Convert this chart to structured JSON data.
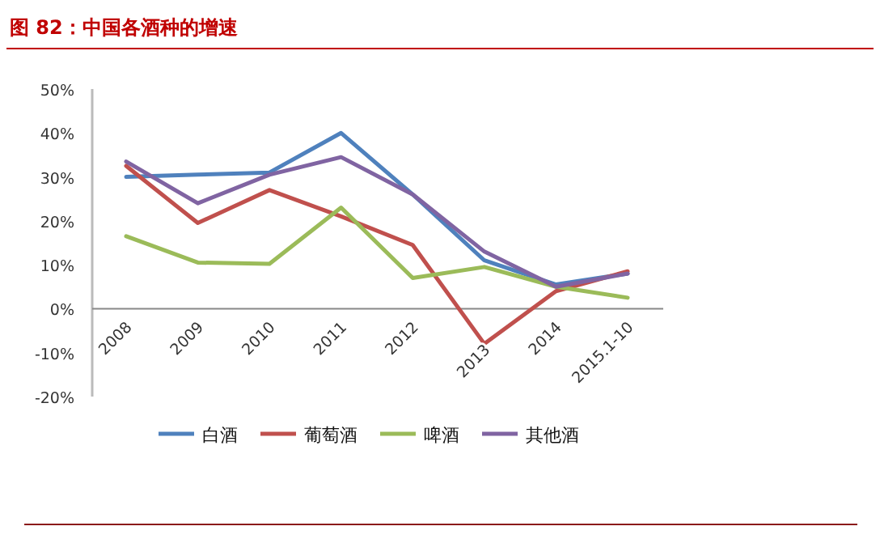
{
  "chart_data": {
    "type": "line",
    "title": "图 82：中国各酒种的增速",
    "categories": [
      "2008",
      "2009",
      "2010",
      "2011",
      "2012",
      "2013",
      "2014",
      "2015.1-10"
    ],
    "series": [
      {
        "name": "白酒",
        "color": "#4f81bd",
        "values": [
          30,
          30.5,
          31,
          40,
          26,
          11,
          5.5,
          8
        ]
      },
      {
        "name": "葡萄酒",
        "color": "#c0504d",
        "values": [
          32.5,
          19.5,
          27,
          21,
          14.5,
          -8,
          4,
          8.5
        ]
      },
      {
        "name": "啤酒",
        "color": "#9bbb59",
        "values": [
          16.5,
          10.5,
          10.2,
          23,
          7,
          9.5,
          5,
          2.5
        ]
      },
      {
        "name": "其他酒",
        "color": "#8064a2",
        "values": [
          33.5,
          24,
          30.5,
          34.5,
          26,
          13,
          5,
          8
        ]
      }
    ],
    "ylim": [
      -20,
      50
    ],
    "yticks": [
      {
        "value": -20,
        "label": "-20%"
      },
      {
        "value": -10,
        "label": "-10%"
      },
      {
        "value": 0,
        "label": "0%"
      },
      {
        "value": 10,
        "label": "10%"
      },
      {
        "value": 20,
        "label": "20%"
      },
      {
        "value": 30,
        "label": "30%"
      },
      {
        "value": 40,
        "label": "40%"
      },
      {
        "value": 50,
        "label": "50%"
      }
    ],
    "grid": false,
    "legend": "bottom",
    "marker": "none",
    "line_style": "solid"
  }
}
